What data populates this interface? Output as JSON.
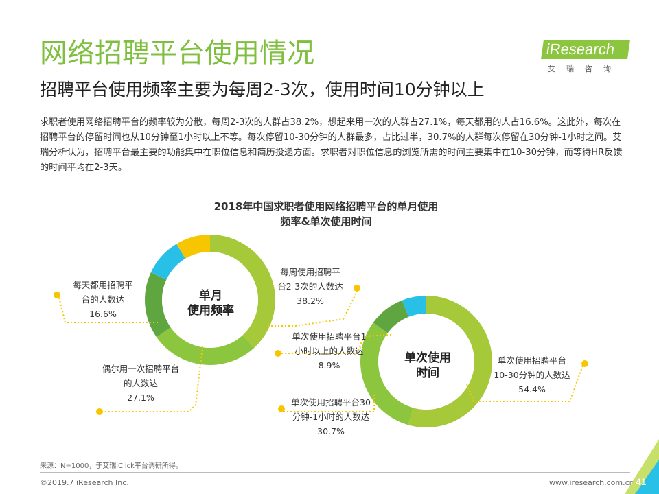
{
  "header": {
    "title": "网络招聘平台使用情况",
    "subtitle": "招聘平台使用频率主要为每周2-3次，使用时间10分钟以上",
    "description": "求职者使用网络招聘平台的频率较为分散，每周2-3次的人群占38.2%，想起来用一次的人群占27.1%，每天都用的人占16.6%。这此外，每次在招聘平台的停留时间也从10分钟至1小时以上不等。每次停留10-30分钟的人群最多，占比过半，30.7%的人群每次停留在30分钟-1小时之间。艾瑞分析认为，招聘平台最主要的功能集中在职位信息和简历投递方面。求职者对职位信息的浏览所需的时间主要集中在10-30分钟，而等待HR反馈的时间平均在2-3天。"
  },
  "logo": {
    "brand": "iResearch",
    "chinese": "艾瑞咨询"
  },
  "chart_data": [
    {
      "type": "pie",
      "variant": "donut",
      "title": "2018年中国求职者使用网络招聘平台的单月使用频率&单次使用时间",
      "center_label": [
        "单月",
        "使用频率"
      ],
      "slices": [
        {
          "label": "每周使用招聘平台2-3次的人数达",
          "value": 38.2,
          "color": "#a6c93a"
        },
        {
          "label": "偶尔用一次招聘平台的人数达",
          "value": 27.1,
          "color": "#8cc63f"
        },
        {
          "label": "每天都用招聘平台的人数达",
          "value": 16.6,
          "color": "#5fa640"
        },
        {
          "label": "",
          "value": 9.5,
          "color": "#29c0e8"
        },
        {
          "label": "",
          "value": 8.6,
          "color": "#f7c600"
        }
      ]
    },
    {
      "type": "pie",
      "variant": "donut",
      "center_label": [
        "单次使用",
        "时间"
      ],
      "slices": [
        {
          "label": "单次使用招聘平台10-30分钟的人数达",
          "value": 54.4,
          "color": "#a6c93a"
        },
        {
          "label": "单次使用招聘平台30分钟-1小时的人数达",
          "value": 30.7,
          "color": "#8cc63f"
        },
        {
          "label": "单次使用招聘平台1小时以上的人数达",
          "value": 8.9,
          "color": "#5fa640"
        },
        {
          "label": "",
          "value": 6.0,
          "color": "#29c0e8"
        }
      ]
    }
  ],
  "annotations": {
    "a1": [
      "每周使用招聘平",
      "台2-3次的人数达",
      "38.2%"
    ],
    "a2": [
      "每天都用招聘平",
      "台的人数达",
      "16.6%"
    ],
    "a3": [
      "偶尔用一次招聘平台",
      "的人数达",
      "27.1%"
    ],
    "a4": [
      "单次使用招聘平台1",
      "小时以上的人数达",
      "8.9%"
    ],
    "a5": [
      "单次使用招聘平台",
      "10-30分钟的人数达",
      "54.4%"
    ],
    "a6": [
      "单次使用招聘平台30",
      "分钟-1小时的人数达",
      "30.7%"
    ]
  },
  "chart_title_lines": [
    "2018年中国求职者使用网络招聘平台的单月使用",
    "频率&单次使用时间"
  ],
  "footer": {
    "source": "来源：N=1000，于艾瑞iClick平台调研所得。",
    "copyright": "©2019.7 iResearch Inc.",
    "website": "www.iresearch.com.cn",
    "page": "41"
  },
  "colors": {
    "accent_green": "#7fbf3f",
    "dot_yellow": "#f7c600"
  }
}
